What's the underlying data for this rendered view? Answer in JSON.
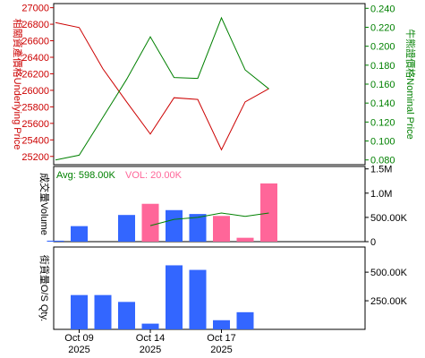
{
  "chart_data": [
    {
      "type": "line",
      "panel": "price",
      "ylabel_left": "相關資產價格Underlying Price",
      "ylabel_right": "牛熊證價格Nominal Price",
      "ylim_left": [
        25100,
        27050
      ],
      "yticks_left": [
        25200,
        25400,
        25600,
        25800,
        26000,
        26200,
        26400,
        26600,
        26800,
        27000
      ],
      "ylim_right": [
        0.075,
        0.245
      ],
      "yticks_right": [
        0.08,
        0.1,
        0.12,
        0.14,
        0.16,
        0.18,
        0.2,
        0.22,
        0.24
      ],
      "yticks_right_labels": [
        "0.080",
        "0.100",
        "0.120",
        "0.140",
        "0.160",
        "0.180",
        "0.200",
        "0.220",
        "0.240"
      ],
      "colors": {
        "underlying": "#cc0000",
        "nominal": "#008000"
      },
      "series": [
        {
          "key": "underlying",
          "axis": "left",
          "x": [
            1,
            2,
            3,
            4,
            5,
            6,
            7,
            8,
            9,
            10
          ],
          "values": [
            26820,
            26760,
            26260,
            25860,
            25470,
            25910,
            25890,
            25280,
            25860,
            26020
          ]
        },
        {
          "key": "nominal",
          "axis": "right",
          "x": [
            1,
            2,
            3,
            4,
            5,
            6,
            7,
            8,
            9,
            10
          ],
          "values": [
            0.08,
            0.085,
            0.125,
            0.165,
            0.21,
            0.167,
            0.166,
            0.23,
            0.175,
            0.155
          ]
        }
      ]
    },
    {
      "type": "bar",
      "panel": "volume",
      "ylabel": "成交量Volume",
      "avg_label": "Avg: 598.00K",
      "vol_label": "VOL: 20.00K",
      "ylim": [
        0,
        1550000
      ],
      "yticks": [
        0,
        500000,
        1000000,
        1500000
      ],
      "ytick_labels": [
        "0",
        "500.00K",
        "1.0M",
        "1.5M"
      ],
      "colors": {
        "up": "#3366ff",
        "down": "#ff6699",
        "avg": "#008000"
      },
      "x": [
        1,
        2,
        3,
        4,
        5,
        6,
        7,
        8,
        9,
        10
      ],
      "values": [
        20000,
        320000,
        0,
        550000,
        780000,
        650000,
        570000,
        530000,
        80000,
        1200000
      ],
      "bar_color": [
        "up",
        "up",
        "up",
        "up",
        "down",
        "up",
        "up",
        "down",
        "down",
        "down"
      ],
      "avg_line": {
        "x": [
          5,
          6,
          7,
          8,
          9,
          10
        ],
        "values": [
          330000,
          460000,
          500000,
          590000,
          520000,
          590000
        ]
      }
    },
    {
      "type": "bar",
      "panel": "outstanding",
      "ylabel": "街貨量O/S Qty.",
      "ylim": [
        0,
        720000
      ],
      "yticks": [
        250000,
        500000
      ],
      "ytick_labels": [
        "250.00K",
        "500.00K"
      ],
      "color": "#3366ff",
      "x": [
        1,
        2,
        3,
        4,
        5,
        6,
        7,
        8,
        9,
        10
      ],
      "values": [
        0,
        300000,
        300000,
        240000,
        50000,
        560000,
        520000,
        80000,
        150000,
        0
      ]
    }
  ],
  "x_axis": {
    "ticks": [
      {
        "x": 2,
        "line1": "Oct 09",
        "line2": "2025"
      },
      {
        "x": 5,
        "line1": "Oct 14",
        "line2": "2025"
      },
      {
        "x": 8,
        "line1": "Oct 17",
        "line2": "2025"
      }
    ]
  }
}
